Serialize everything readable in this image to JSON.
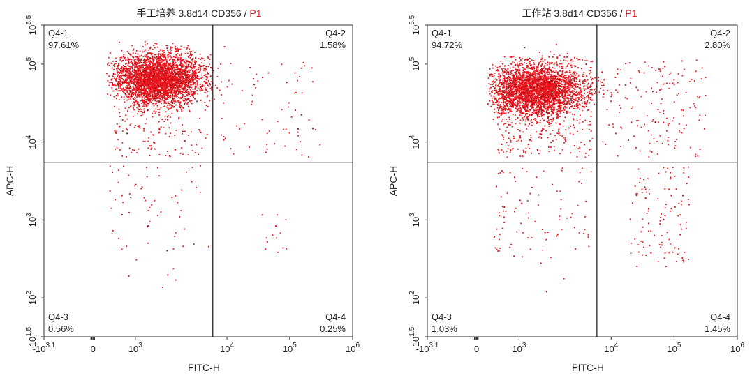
{
  "chart_data": [
    {
      "type": "scatter",
      "title_main": "手工培养 3.8d14 CD356 / ",
      "title_gate": "P1",
      "xlabel": "FITC-H",
      "ylabel": "APC-H",
      "x_scale": "biexponential",
      "y_scale": "log",
      "x_ticks": [
        {
          "label": "-10",
          "sup": "3.1"
        },
        {
          "label": "0",
          "sup": ""
        },
        {
          "label": "10",
          "sup": "3"
        },
        {
          "label": "10",
          "sup": "4"
        },
        {
          "label": "10",
          "sup": "5"
        },
        {
          "label": "10",
          "sup": "6"
        }
      ],
      "y_ticks": [
        {
          "label": "10",
          "sup": "1.5"
        },
        {
          "label": "10",
          "sup": "2"
        },
        {
          "label": "10",
          "sup": "3"
        },
        {
          "label": "10",
          "sup": "4"
        },
        {
          "label": "10",
          "sup": "5"
        },
        {
          "label": "10",
          "sup": "5.5"
        }
      ],
      "gate_x": 7000,
      "gate_y": 5500,
      "quadrants": [
        {
          "name": "Q4-1",
          "percent": "97.61%",
          "corner": "top-left"
        },
        {
          "name": "Q4-2",
          "percent": "1.58%",
          "corner": "top-right"
        },
        {
          "name": "Q4-3",
          "percent": "0.56%",
          "corner": "bottom-left"
        },
        {
          "name": "Q4-4",
          "percent": "0.25%",
          "corner": "bottom-right"
        }
      ],
      "point_color": "#e8141c",
      "main_population_center": {
        "x": 1800,
        "y": 70000
      }
    },
    {
      "type": "scatter",
      "title_main": "工作站 3.8d14 CD356 / ",
      "title_gate": "P1",
      "xlabel": "FITC-H",
      "ylabel": "APC-H",
      "x_scale": "biexponential",
      "y_scale": "log",
      "x_ticks": [
        {
          "label": "-10",
          "sup": "3.1"
        },
        {
          "label": "0",
          "sup": ""
        },
        {
          "label": "10",
          "sup": "3"
        },
        {
          "label": "10",
          "sup": "4"
        },
        {
          "label": "10",
          "sup": "5"
        },
        {
          "label": "10",
          "sup": "6"
        }
      ],
      "y_ticks": [
        {
          "label": "10",
          "sup": "1.5"
        },
        {
          "label": "10",
          "sup": "2"
        },
        {
          "label": "10",
          "sup": "3"
        },
        {
          "label": "10",
          "sup": "4"
        },
        {
          "label": "10",
          "sup": "5"
        },
        {
          "label": "10",
          "sup": "5.5"
        }
      ],
      "gate_x": 7000,
      "gate_y": 5500,
      "quadrants": [
        {
          "name": "Q4-1",
          "percent": "94.72%",
          "corner": "top-left"
        },
        {
          "name": "Q4-2",
          "percent": "2.80%",
          "corner": "top-right"
        },
        {
          "name": "Q4-3",
          "percent": "1.03%",
          "corner": "bottom-left"
        },
        {
          "name": "Q4-4",
          "percent": "1.45%",
          "corner": "bottom-right"
        }
      ],
      "point_color": "#e8141c",
      "main_population_center": {
        "x": 1600,
        "y": 50000
      }
    }
  ]
}
